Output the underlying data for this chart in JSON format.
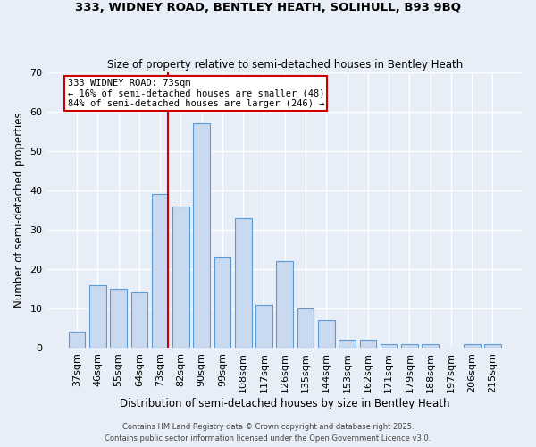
{
  "title1": "333, WIDNEY ROAD, BENTLEY HEATH, SOLIHULL, B93 9BQ",
  "title2": "Size of property relative to semi-detached houses in Bentley Heath",
  "xlabel": "Distribution of semi-detached houses by size in Bentley Heath",
  "ylabel": "Number of semi-detached properties",
  "categories": [
    "37sqm",
    "46sqm",
    "55sqm",
    "64sqm",
    "73sqm",
    "82sqm",
    "90sqm",
    "99sqm",
    "108sqm",
    "117sqm",
    "126sqm",
    "135sqm",
    "144sqm",
    "153sqm",
    "162sqm",
    "171sqm",
    "179sqm",
    "188sqm",
    "197sqm",
    "206sqm",
    "215sqm"
  ],
  "values": [
    4,
    16,
    15,
    14,
    39,
    36,
    57,
    23,
    33,
    11,
    22,
    10,
    7,
    2,
    2,
    1,
    1,
    1,
    0,
    1,
    1
  ],
  "bar_color": "#c9d9f0",
  "bar_edge_color": "#5b9bd5",
  "property_index": 4,
  "property_label": "333 WIDNEY ROAD: 73sqm",
  "pct_smaller": "16%",
  "pct_larger": "84%",
  "n_smaller": 48,
  "n_larger": 246,
  "annotation_box_color": "#ffffff",
  "annotation_box_edge": "#cc0000",
  "vline_color": "#cc0000",
  "background_color": "#e8eef7",
  "grid_color": "#ffffff",
  "ylim": [
    0,
    70
  ],
  "yticks": [
    0,
    10,
    20,
    30,
    40,
    50,
    60,
    70
  ],
  "footer1": "Contains HM Land Registry data © Crown copyright and database right 2025.",
  "footer2": "Contains public sector information licensed under the Open Government Licence v3.0."
}
